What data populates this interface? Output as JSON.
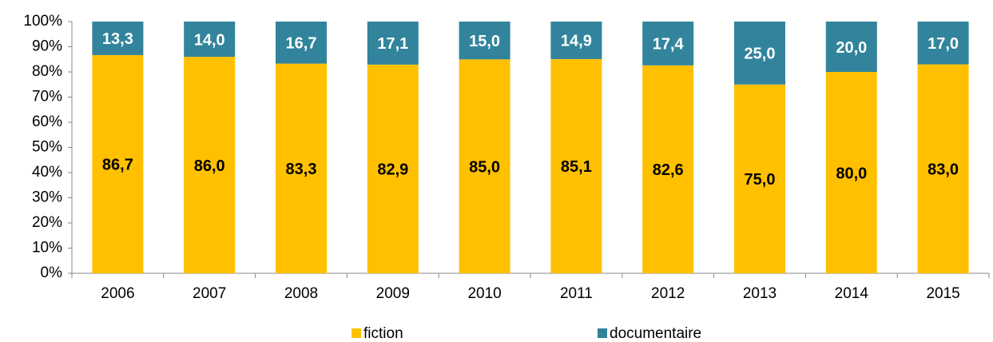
{
  "chart_data": {
    "type": "bar",
    "stacked": true,
    "categories": [
      "2006",
      "2007",
      "2008",
      "2009",
      "2010",
      "2011",
      "2012",
      "2013",
      "2014",
      "2015"
    ],
    "series": [
      {
        "name": "fiction",
        "color": "#FFC000",
        "label_color": "#000000",
        "values": [
          86.7,
          86.0,
          83.3,
          82.9,
          85.0,
          85.1,
          82.6,
          75.0,
          80.0,
          83.0
        ],
        "value_labels": [
          "86,7",
          "86,0",
          "83,3",
          "82,9",
          "85,0",
          "85,1",
          "82,6",
          "75,0",
          "80,0",
          "83,0"
        ]
      },
      {
        "name": "documentaire",
        "color": "#31849B",
        "label_color": "#FFFFFF",
        "values": [
          13.3,
          14.0,
          16.7,
          17.1,
          15.0,
          14.9,
          17.4,
          25.0,
          20.0,
          17.0
        ],
        "value_labels": [
          "13,3",
          "14,0",
          "16,7",
          "17,1",
          "15,0",
          "14,9",
          "17,4",
          "25,0",
          "20,0",
          "17,0"
        ]
      }
    ],
    "ylim": [
      0,
      100
    ],
    "yticks": [
      {
        "value": 0,
        "label": "0%"
      },
      {
        "value": 10,
        "label": "10%"
      },
      {
        "value": 20,
        "label": "20%"
      },
      {
        "value": 30,
        "label": "30%"
      },
      {
        "value": 40,
        "label": "40%"
      },
      {
        "value": 50,
        "label": "50%"
      },
      {
        "value": 60,
        "label": "60%"
      },
      {
        "value": 70,
        "label": "70%"
      },
      {
        "value": 80,
        "label": "80%"
      },
      {
        "value": 90,
        "label": "90%"
      },
      {
        "value": 100,
        "label": "100%"
      }
    ],
    "grid": false,
    "legend": "bottom"
  }
}
